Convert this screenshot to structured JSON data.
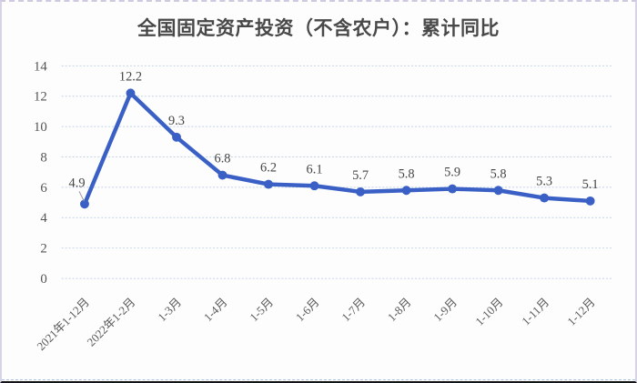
{
  "frame": {
    "background": "#fdfdfd",
    "side_border_color": "#d9d3e8",
    "top_border_color": "#cfc9df",
    "bottom_border_color": "#141414",
    "bottom_dashed_color": "#a9c2e0"
  },
  "chart_data": {
    "type": "line",
    "title": "全国固定资产投资（不含农户）：累计同比",
    "categories": [
      "2021年1-12月",
      "2022年1-2月",
      "1-3月",
      "1-4月",
      "1-5月",
      "1-6月",
      "1-7月",
      "1-8月",
      "1-9月",
      "1-10月",
      "1-11月",
      "1-12月"
    ],
    "values": [
      4.9,
      12.2,
      9.3,
      6.8,
      6.2,
      6.1,
      5.7,
      5.8,
      5.9,
      5.8,
      5.3,
      5.1
    ],
    "data_labels": [
      "4.9",
      "12.2",
      "9.3",
      "6.8",
      "6.2",
      "6.1",
      "5.7",
      "5.8",
      "5.9",
      "5.8",
      "5.3",
      "5.1"
    ],
    "xlabel": "",
    "ylabel": "",
    "ylim": [
      0,
      14
    ],
    "yticks": [
      0,
      2,
      4,
      6,
      8,
      10,
      12,
      14
    ],
    "legend": "none",
    "grid": "horizontal-dotted",
    "colors": {
      "line": "#3a60c6",
      "marker": "#3a60c6",
      "gridline": "#c2d3e8",
      "ytick_text": "#555555",
      "xtick_text": "#595959",
      "data_label_text": "#454545",
      "leader_line": "#999999",
      "title_text": "#484848"
    }
  }
}
